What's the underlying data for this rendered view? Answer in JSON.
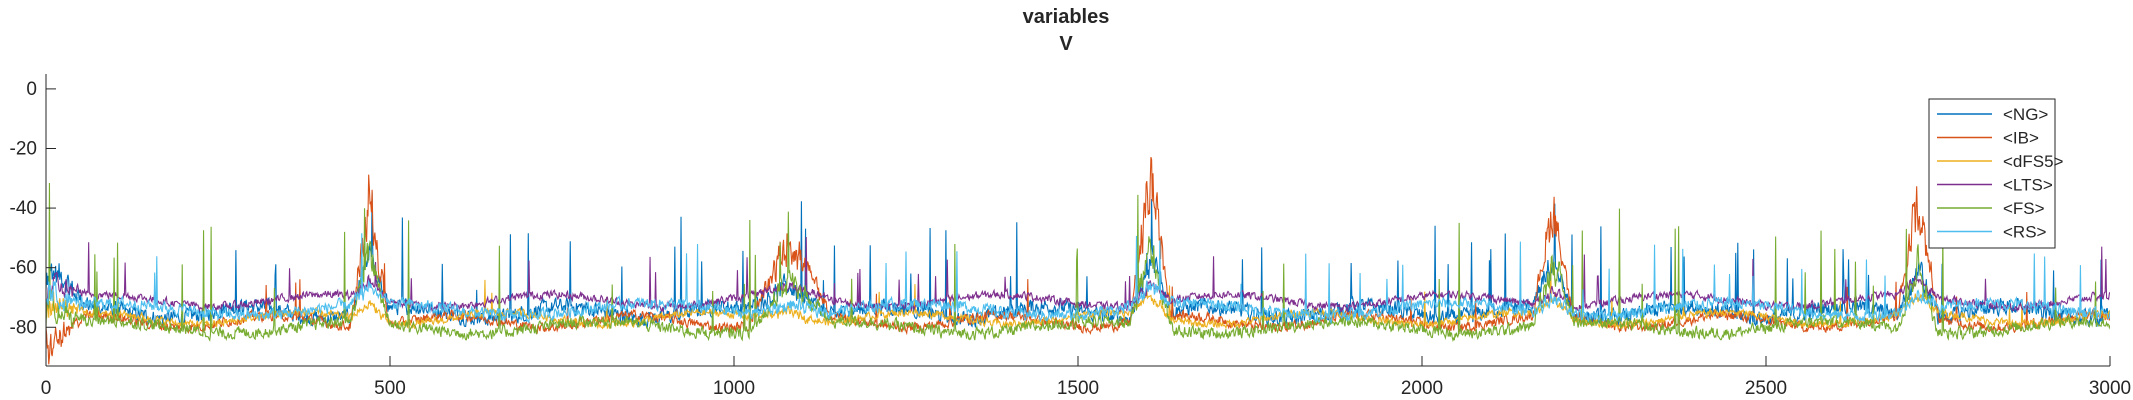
{
  "chart_data": {
    "type": "line",
    "title": "variables",
    "subtitle": "V",
    "xlabel": "",
    "ylabel": "",
    "xlim": [
      0,
      3000
    ],
    "ylim": [
      -93,
      5
    ],
    "xticks": [
      0,
      500,
      1000,
      1500,
      2000,
      2500,
      3000
    ],
    "yticks": [
      0,
      -20,
      -40,
      -60,
      -80
    ],
    "grid": false,
    "legend_position": "top-right",
    "bursts": [
      {
        "center": 470,
        "width": 28,
        "peak": -25
      },
      {
        "center": 1080,
        "width": 60,
        "peak": -45
      },
      {
        "center": 1605,
        "width": 30,
        "peak": -18
      },
      {
        "center": 2190,
        "width": 30,
        "peak": -32
      },
      {
        "center": 2720,
        "width": 30,
        "peak": -28
      }
    ],
    "series": [
      {
        "name": "<NG>",
        "color": "#0072BD",
        "baseline": -75,
        "noise": 4,
        "spikes": 55,
        "spike_height": 22
      },
      {
        "name": "<IB>",
        "color": "#D95319",
        "baseline": -78,
        "noise": 2.5,
        "spikes": 18,
        "spike_height": 10
      },
      {
        "name": "<dFS5>",
        "color": "#EDB120",
        "baseline": -77,
        "noise": 2,
        "spikes": 15,
        "spike_height": 8
      },
      {
        "name": "<LTS>",
        "color": "#7E2F8E",
        "baseline": -71,
        "noise": 2,
        "spikes": 30,
        "spike_height": 12
      },
      {
        "name": "<FS>",
        "color": "#77AC30",
        "baseline": -80,
        "noise": 3,
        "spikes": 45,
        "spike_height": 25
      },
      {
        "name": "<RS>",
        "color": "#4DBEEE",
        "baseline": -74,
        "noise": 3,
        "spikes": 30,
        "spike_height": 15
      }
    ]
  }
}
